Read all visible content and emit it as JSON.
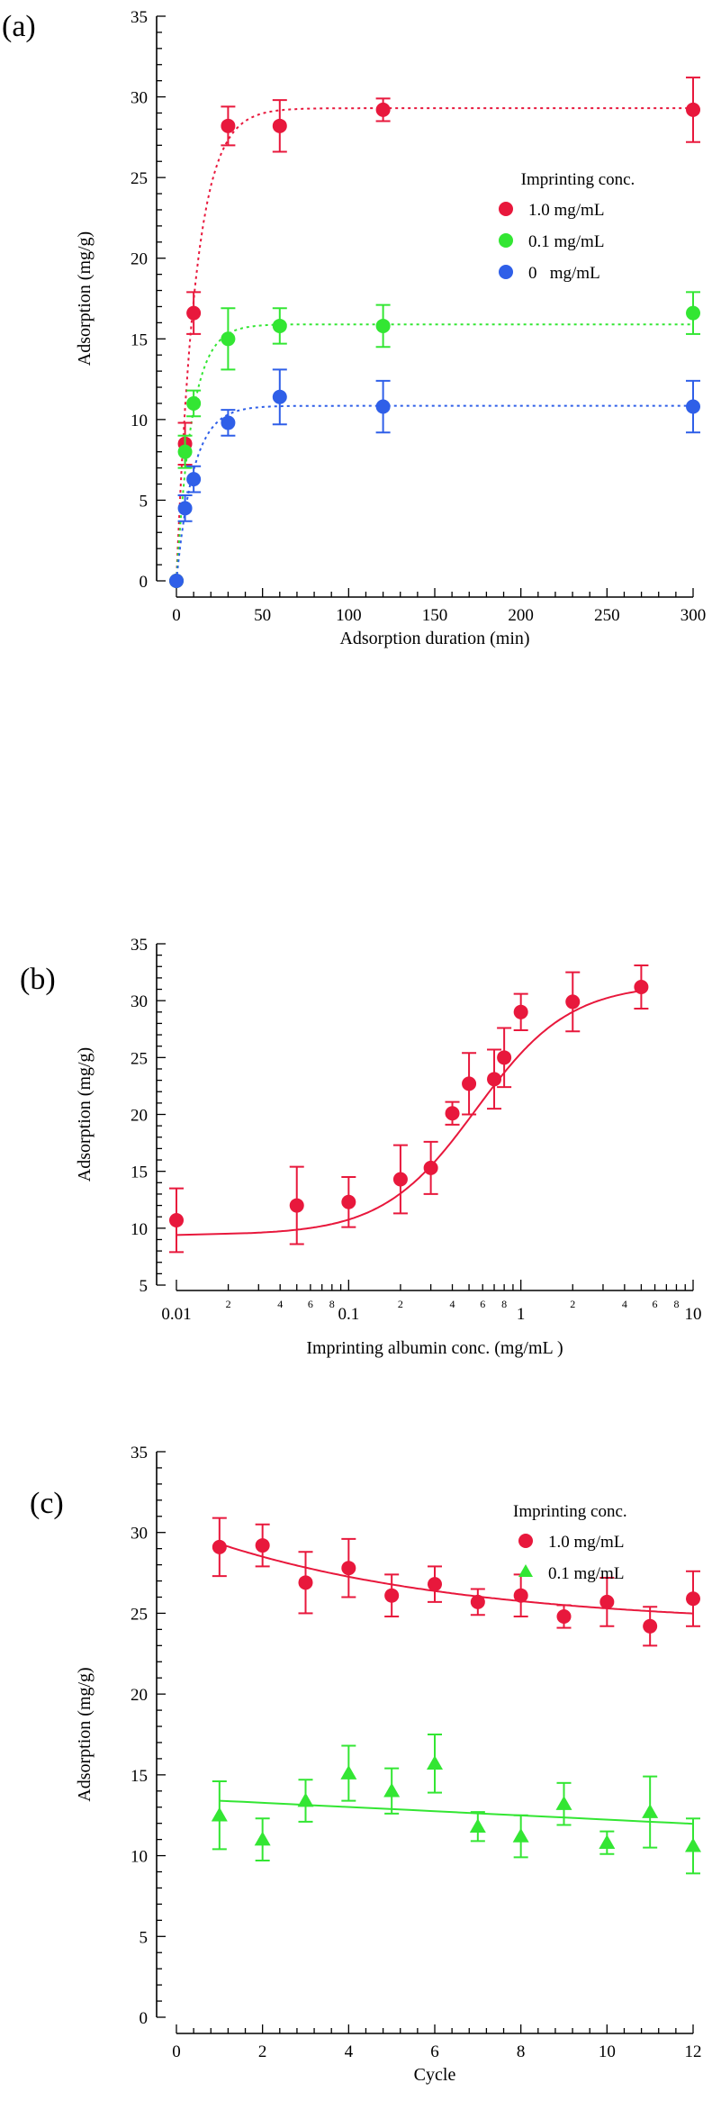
{
  "colors": {
    "red": "#e8183c",
    "green": "#33e633",
    "blue": "#2f5fe8",
    "axis": "#000000"
  },
  "chart_data": [
    {
      "panel": "(a)",
      "type": "scatter",
      "xlabel": "Adsorption duration (min)",
      "ylabel": "Adsorption (mg/g)",
      "xlim": [
        0,
        300
      ],
      "ylim": [
        0,
        35
      ],
      "xticks": [
        0,
        50,
        100,
        150,
        200,
        250,
        300
      ],
      "yticks": [
        0,
        5,
        10,
        15,
        20,
        25,
        30,
        35
      ],
      "legend_title": "Imprinting conc.",
      "legend_position": "right-middle",
      "fit_style": "dotted",
      "series": [
        {
          "name": "1.0 mg/mL",
          "color": "#e8183c",
          "marker": "circle",
          "x": [
            0,
            5,
            10,
            30,
            60,
            120,
            300
          ],
          "y": [
            0,
            8.5,
            16.6,
            28.2,
            28.2,
            29.2,
            29.2
          ],
          "err": [
            0,
            1.3,
            1.3,
            1.2,
            1.6,
            0.7,
            2.0
          ],
          "fit": {
            "kind": "exponential",
            "plateau": 29.3,
            "rate": 0.09
          }
        },
        {
          "name": "0.1 mg/mL",
          "color": "#33e633",
          "marker": "circle",
          "x": [
            0,
            5,
            10,
            30,
            60,
            120,
            300
          ],
          "y": [
            0,
            8.0,
            11.0,
            15.0,
            15.8,
            15.8,
            16.6
          ],
          "err": [
            0,
            1.0,
            0.8,
            1.9,
            1.1,
            1.3,
            1.3
          ],
          "fit": {
            "kind": "exponential",
            "plateau": 15.9,
            "rate": 0.11
          }
        },
        {
          "name": "0   mg/mL",
          "color": "#2f5fe8",
          "marker": "circle",
          "x": [
            0,
            5,
            10,
            30,
            60,
            120,
            300
          ],
          "y": [
            0,
            4.5,
            6.3,
            9.8,
            11.4,
            10.8,
            10.8
          ],
          "err": [
            0,
            0.8,
            0.8,
            0.8,
            1.7,
            1.6,
            1.6
          ],
          "fit": {
            "kind": "exponential",
            "plateau": 10.85,
            "rate": 0.1
          }
        }
      ]
    },
    {
      "panel": "(b)",
      "type": "scatter",
      "xscale": "log",
      "xlabel": "Imprinting albumin conc. (mg/mL )",
      "ylabel": "Adsorption (mg/g)",
      "xlim": [
        0.01,
        10
      ],
      "ylim": [
        5,
        35
      ],
      "xticks": [
        0.01,
        0.1,
        1,
        10
      ],
      "xtick_labels": [
        "0.01",
        "0.1",
        "1",
        "10"
      ],
      "xminor": [
        2,
        4,
        6,
        8
      ],
      "yticks": [
        5,
        10,
        15,
        20,
        25,
        30,
        35
      ],
      "fit_style": "solid",
      "series": [
        {
          "name": "",
          "color": "#e8183c",
          "marker": "circle",
          "x": [
            0.01,
            0.05,
            0.1,
            0.2,
            0.3,
            0.4,
            0.5,
            0.7,
            0.8,
            1.0,
            2.0,
            5.0
          ],
          "y": [
            10.7,
            12.0,
            12.3,
            14.3,
            15.3,
            20.1,
            22.7,
            23.1,
            25.0,
            29.0,
            29.9,
            31.2
          ],
          "err": [
            2.8,
            3.4,
            2.2,
            3.0,
            2.3,
            1.0,
            2.7,
            2.6,
            2.6,
            1.6,
            2.6,
            1.9
          ],
          "fit": {
            "kind": "logistic",
            "low": 9.4,
            "high": 31.5,
            "x0": 0.55,
            "hill": 1.6,
            "start": 0.025
          }
        }
      ]
    },
    {
      "panel": "(c)",
      "type": "scatter",
      "xlabel": "Cycle",
      "ylabel": "Adsorption (mg/g)",
      "xlim": [
        0,
        12
      ],
      "ylim": [
        0,
        35
      ],
      "xticks": [
        0,
        2,
        4,
        6,
        8,
        10,
        12
      ],
      "yticks": [
        0,
        5,
        10,
        15,
        20,
        25,
        30,
        35
      ],
      "legend_title": "Imprinting conc.",
      "legend_position": "top-right",
      "fit_style": "solid",
      "series": [
        {
          "name": "1.0 mg/mL",
          "color": "#e8183c",
          "marker": "circle",
          "x": [
            1,
            2,
            3,
            4,
            5,
            6,
            7,
            8,
            9,
            10,
            11,
            12
          ],
          "y": [
            29.1,
            29.2,
            26.9,
            27.8,
            26.1,
            26.8,
            25.7,
            26.1,
            24.8,
            25.7,
            24.2,
            25.9
          ],
          "err": [
            1.8,
            1.3,
            1.9,
            1.8,
            1.3,
            1.1,
            0.8,
            1.3,
            0.7,
            1.5,
            1.2,
            1.7
          ],
          "fit": {
            "kind": "exponential_decay",
            "start": 29.3,
            "end": 24.2,
            "k": 0.17,
            "from": 1
          }
        },
        {
          "name": "0.1 mg/mL",
          "color": "#33e633",
          "marker": "triangle",
          "x": [
            1,
            2,
            3,
            4,
            5,
            6,
            7,
            8,
            9,
            10,
            11,
            12
          ],
          "y": [
            12.5,
            11.0,
            13.4,
            15.1,
            14.0,
            15.7,
            11.8,
            11.2,
            13.2,
            10.8,
            12.7,
            10.6
          ],
          "err": [
            2.1,
            1.3,
            1.3,
            1.7,
            1.4,
            1.8,
            0.9,
            1.3,
            1.3,
            0.7,
            2.2,
            1.7
          ],
          "fit": {
            "kind": "linear",
            "a": 13.4,
            "b": -0.13
          }
        }
      ]
    }
  ]
}
